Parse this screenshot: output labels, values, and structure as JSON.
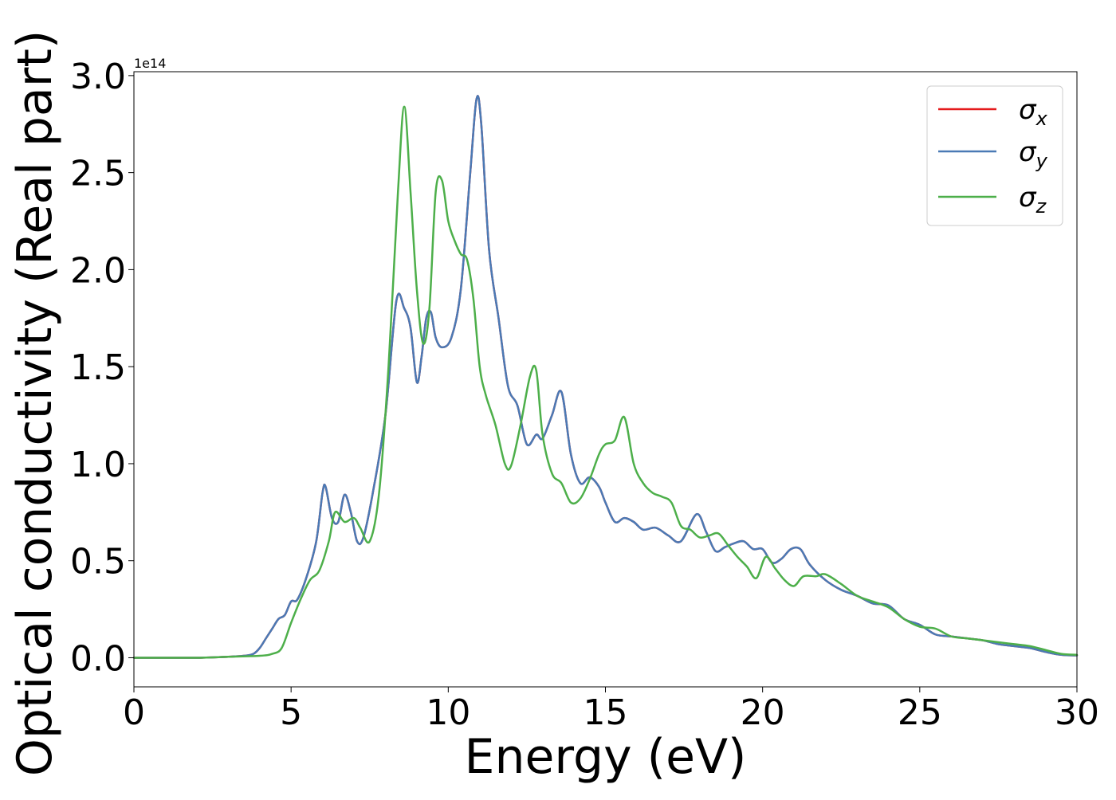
{
  "chart_data": {
    "type": "line",
    "xlabel": "Energy (eV)",
    "ylabel": "Optical conductivity (Real part)",
    "y_offset_text": "1e14",
    "y_multiplier": 100000000000000.0,
    "xlim": [
      0,
      30
    ],
    "ylim": [
      -0.15,
      3.02
    ],
    "x_ticks": [
      0,
      5,
      10,
      15,
      20,
      25,
      30
    ],
    "x_tick_labels": [
      "0",
      "5",
      "10",
      "15",
      "20",
      "25",
      "30"
    ],
    "y_ticks": [
      0.0,
      0.5,
      1.0,
      1.5,
      2.0,
      2.5,
      3.0
    ],
    "y_tick_labels": [
      "0.0",
      "0.5",
      "1.0",
      "1.5",
      "2.0",
      "2.5",
      "3.0"
    ],
    "grid": false,
    "legend_position": "top-right",
    "series": [
      {
        "name": "σx",
        "legend_base": "σ",
        "legend_sub": "x",
        "color": "#e41a1c",
        "hidden_under": "σy",
        "x": [
          0,
          2,
          3,
          3.5,
          3.8,
          4.0,
          4.2,
          4.4,
          4.6,
          4.8,
          5.0,
          5.2,
          5.5,
          5.8,
          6.0,
          6.1,
          6.3,
          6.5,
          6.7,
          6.9,
          7.1,
          7.3,
          7.6,
          8.0,
          8.35,
          8.6,
          8.8,
          9.0,
          9.15,
          9.3,
          9.45,
          9.6,
          9.8,
          10.1,
          10.4,
          10.7,
          10.9,
          11.05,
          11.3,
          11.6,
          11.9,
          12.2,
          12.5,
          12.8,
          13.0,
          13.3,
          13.6,
          13.9,
          14.2,
          14.5,
          14.8,
          15.0,
          15.3,
          15.6,
          15.9,
          16.2,
          16.6,
          17.0,
          17.4,
          17.9,
          18.2,
          18.5,
          18.8,
          19.1,
          19.4,
          19.7,
          20.0,
          20.3,
          20.6,
          20.9,
          21.2,
          21.5,
          22.0,
          22.5,
          23.0,
          23.5,
          24.0,
          24.5,
          25.0,
          25.5,
          26.0,
          26.5,
          27.0,
          27.5,
          28.0,
          28.5,
          29.0,
          29.5,
          30.0
        ],
        "values": [
          0,
          0,
          0.005,
          0.01,
          0.02,
          0.05,
          0.1,
          0.15,
          0.2,
          0.22,
          0.29,
          0.3,
          0.42,
          0.6,
          0.85,
          0.88,
          0.72,
          0.7,
          0.84,
          0.75,
          0.6,
          0.62,
          0.85,
          1.25,
          1.84,
          1.8,
          1.7,
          1.42,
          1.55,
          1.75,
          1.78,
          1.65,
          1.6,
          1.65,
          1.9,
          2.5,
          2.88,
          2.75,
          2.1,
          1.75,
          1.4,
          1.3,
          1.1,
          1.15,
          1.13,
          1.25,
          1.37,
          1.05,
          0.9,
          0.93,
          0.88,
          0.8,
          0.7,
          0.72,
          0.7,
          0.66,
          0.67,
          0.63,
          0.6,
          0.74,
          0.65,
          0.55,
          0.57,
          0.59,
          0.6,
          0.56,
          0.56,
          0.49,
          0.51,
          0.56,
          0.56,
          0.48,
          0.4,
          0.35,
          0.32,
          0.28,
          0.27,
          0.2,
          0.17,
          0.12,
          0.11,
          0.1,
          0.09,
          0.07,
          0.06,
          0.05,
          0.03,
          0.015,
          0.012
        ]
      },
      {
        "name": "σy",
        "legend_base": "σ",
        "legend_sub": "y",
        "color": "#4a7ab5",
        "x": [
          0,
          2,
          3,
          3.5,
          3.8,
          4.0,
          4.2,
          4.4,
          4.6,
          4.8,
          5.0,
          5.2,
          5.5,
          5.8,
          6.0,
          6.1,
          6.3,
          6.5,
          6.7,
          6.9,
          7.1,
          7.3,
          7.6,
          8.0,
          8.35,
          8.6,
          8.8,
          9.0,
          9.15,
          9.3,
          9.45,
          9.6,
          9.8,
          10.1,
          10.4,
          10.7,
          10.9,
          11.05,
          11.3,
          11.6,
          11.9,
          12.2,
          12.5,
          12.8,
          13.0,
          13.3,
          13.6,
          13.9,
          14.2,
          14.5,
          14.8,
          15.0,
          15.3,
          15.6,
          15.9,
          16.2,
          16.6,
          17.0,
          17.4,
          17.9,
          18.2,
          18.5,
          18.8,
          19.1,
          19.4,
          19.7,
          20.0,
          20.3,
          20.6,
          20.9,
          21.2,
          21.5,
          22.0,
          22.5,
          23.0,
          23.5,
          24.0,
          24.5,
          25.0,
          25.5,
          26.0,
          26.5,
          27.0,
          27.5,
          28.0,
          28.5,
          29.0,
          29.5,
          30.0
        ],
        "values": [
          0,
          0,
          0.005,
          0.01,
          0.02,
          0.05,
          0.1,
          0.15,
          0.2,
          0.22,
          0.29,
          0.3,
          0.42,
          0.6,
          0.85,
          0.88,
          0.72,
          0.7,
          0.84,
          0.75,
          0.6,
          0.62,
          0.85,
          1.25,
          1.84,
          1.8,
          1.7,
          1.42,
          1.55,
          1.75,
          1.78,
          1.65,
          1.6,
          1.65,
          1.9,
          2.5,
          2.88,
          2.75,
          2.1,
          1.75,
          1.4,
          1.3,
          1.1,
          1.15,
          1.13,
          1.25,
          1.37,
          1.05,
          0.9,
          0.93,
          0.88,
          0.8,
          0.7,
          0.72,
          0.7,
          0.66,
          0.67,
          0.63,
          0.6,
          0.74,
          0.65,
          0.55,
          0.57,
          0.59,
          0.6,
          0.56,
          0.56,
          0.49,
          0.51,
          0.56,
          0.56,
          0.48,
          0.4,
          0.35,
          0.32,
          0.28,
          0.27,
          0.2,
          0.17,
          0.12,
          0.11,
          0.1,
          0.09,
          0.07,
          0.06,
          0.05,
          0.03,
          0.015,
          0.012
        ]
      },
      {
        "name": "σz",
        "legend_base": "σ",
        "legend_sub": "z",
        "color": "#4daf4a",
        "x": [
          0,
          2,
          3,
          4,
          4.4,
          4.7,
          5.0,
          5.3,
          5.6,
          5.9,
          6.2,
          6.4,
          6.7,
          7.0,
          7.2,
          7.5,
          7.8,
          8.1,
          8.4,
          8.6,
          8.8,
          9.0,
          9.2,
          9.4,
          9.6,
          9.8,
          10.0,
          10.2,
          10.4,
          10.6,
          10.8,
          11.0,
          11.2,
          11.5,
          11.8,
          12.0,
          12.3,
          12.6,
          12.8,
          13.0,
          13.3,
          13.6,
          13.9,
          14.2,
          14.5,
          14.8,
          15.0,
          15.3,
          15.6,
          15.9,
          16.2,
          16.5,
          16.8,
          17.1,
          17.4,
          17.7,
          18.0,
          18.3,
          18.6,
          18.9,
          19.2,
          19.5,
          19.8,
          20.1,
          20.4,
          20.7,
          21.0,
          21.3,
          21.7,
          22.0,
          22.5,
          23.0,
          23.5,
          24.0,
          24.5,
          25.0,
          25.5,
          26.0,
          26.5,
          27.0,
          27.5,
          28.0,
          28.5,
          29.0,
          29.5,
          30.0
        ],
        "values": [
          0,
          0,
          0.005,
          0.01,
          0.02,
          0.05,
          0.18,
          0.3,
          0.4,
          0.45,
          0.6,
          0.75,
          0.7,
          0.72,
          0.67,
          0.6,
          0.85,
          1.5,
          2.4,
          2.84,
          2.4,
          1.9,
          1.62,
          1.8,
          2.4,
          2.46,
          2.25,
          2.15,
          2.08,
          2.05,
          1.85,
          1.5,
          1.35,
          1.2,
          1.0,
          0.99,
          1.2,
          1.45,
          1.48,
          1.15,
          0.95,
          0.9,
          0.8,
          0.82,
          0.92,
          1.05,
          1.1,
          1.12,
          1.24,
          1.0,
          0.9,
          0.85,
          0.83,
          0.8,
          0.68,
          0.66,
          0.62,
          0.63,
          0.64,
          0.58,
          0.52,
          0.47,
          0.41,
          0.52,
          0.46,
          0.4,
          0.37,
          0.42,
          0.42,
          0.43,
          0.38,
          0.32,
          0.29,
          0.26,
          0.2,
          0.16,
          0.15,
          0.11,
          0.1,
          0.09,
          0.08,
          0.07,
          0.06,
          0.04,
          0.02,
          0.015
        ]
      }
    ]
  }
}
